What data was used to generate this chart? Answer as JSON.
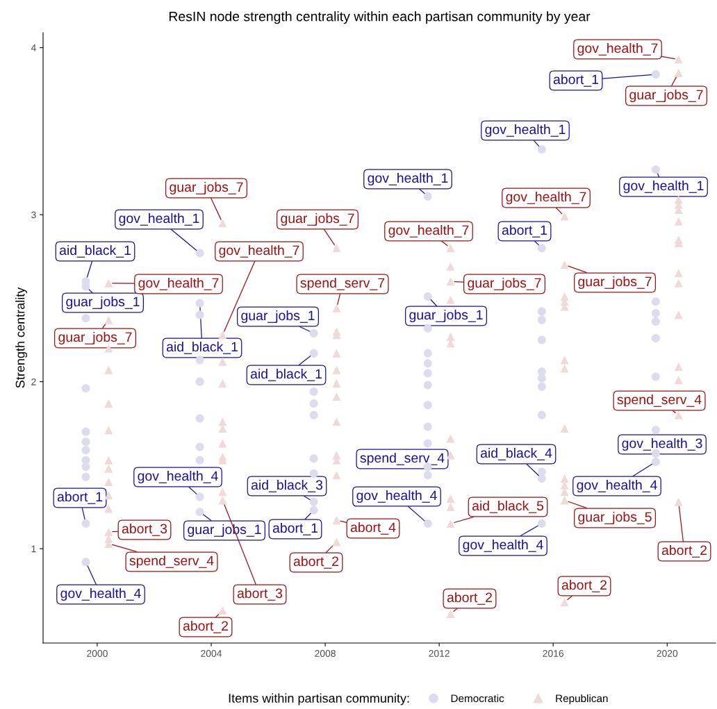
{
  "chart_data": {
    "type": "scatter",
    "title": "ResIN node strength centrality within each partisan community by year",
    "ylabel": "Strength centrality",
    "legend_title": "Items within partisan community:",
    "legend": "bottom",
    "grid": false,
    "xlim": [
      1998.1,
      2021.7
    ],
    "xticks": [
      2000,
      2004,
      2008,
      2012,
      2016,
      2020
    ],
    "ylim": [
      0.435,
      4.09
    ],
    "yticks": [
      1,
      2,
      3,
      4
    ],
    "series": [
      {
        "name": "Democratic",
        "color": "#dddcef",
        "marker": "circle",
        "x": [
          1999.6,
          1999.6,
          1999.6,
          1999.6,
          1999.6,
          1999.6,
          1999.6,
          1999.6,
          1999.6,
          1999.6,
          1999.6,
          1999.6,
          2003.6,
          2003.6,
          2003.6,
          2003.6,
          2003.6,
          2003.6,
          2003.6,
          2003.6,
          2003.6,
          2003.6,
          2007.6,
          2007.6,
          2007.6,
          2007.6,
          2007.6,
          2007.6,
          2007.6,
          2007.6,
          2007.6,
          2011.6,
          2011.6,
          2011.6,
          2011.6,
          2011.6,
          2011.6,
          2011.6,
          2011.6,
          2011.6,
          2011.6,
          2011.6,
          2011.6,
          2011.6,
          2015.6,
          2015.6,
          2015.6,
          2015.6,
          2015.6,
          2015.6,
          2015.6,
          2015.6,
          2015.6,
          2015.6,
          2015.6,
          2015.6,
          2019.6,
          2019.6,
          2019.6,
          2019.6,
          2019.6,
          2019.6,
          2019.6,
          2019.6,
          2019.6,
          2019.6
        ],
        "values": [
          2.6,
          2.57,
          2.38,
          1.96,
          1.7,
          1.64,
          1.59,
          1.53,
          1.49,
          1.43,
          1.15,
          0.92,
          2.77,
          2.47,
          2.4,
          2.13,
          2.0,
          1.78,
          1.61,
          1.53,
          1.31,
          1.22,
          2.29,
          2.17,
          1.94,
          1.87,
          1.8,
          1.54,
          1.45,
          1.28,
          1.23,
          3.11,
          2.51,
          2.32,
          2.17,
          2.11,
          2.05,
          1.98,
          1.86,
          1.73,
          1.63,
          1.49,
          1.44,
          1.15,
          3.39,
          2.8,
          2.42,
          2.37,
          2.25,
          2.06,
          2.02,
          1.97,
          1.8,
          1.46,
          1.42,
          1.15,
          3.84,
          3.27,
          2.48,
          2.41,
          2.36,
          2.26,
          2.03,
          1.71,
          1.57,
          1.52
        ]
      },
      {
        "name": "Republican",
        "color": "#efd9d9",
        "marker": "triangle",
        "x": [
          2000.4,
          2000.4,
          2000.4,
          2000.4,
          2000.4,
          2000.4,
          2000.4,
          2000.4,
          2000.4,
          2000.4,
          2000.4,
          2000.4,
          2000.4,
          2000.4,
          2004.4,
          2004.4,
          2004.4,
          2004.4,
          2004.4,
          2004.4,
          2004.4,
          2004.4,
          2004.4,
          2004.4,
          2004.4,
          2004.4,
          2008.4,
          2008.4,
          2008.4,
          2008.4,
          2008.4,
          2008.4,
          2008.4,
          2008.4,
          2008.4,
          2008.4,
          2008.4,
          2008.4,
          2008.4,
          2008.4,
          2012.4,
          2012.4,
          2012.4,
          2012.4,
          2012.4,
          2012.4,
          2012.4,
          2012.4,
          2012.4,
          2012.4,
          2012.4,
          2012.4,
          2016.4,
          2016.4,
          2016.4,
          2016.4,
          2016.4,
          2016.4,
          2016.4,
          2016.4,
          2016.4,
          2016.4,
          2016.4,
          2016.4,
          2016.4,
          2020.4,
          2020.4,
          2020.4,
          2020.4,
          2020.4,
          2020.4,
          2020.4,
          2020.4,
          2020.4,
          2020.4,
          2020.4,
          2020.4,
          2020.4,
          2020.4,
          2020.4
        ],
        "values": [
          2.59,
          2.37,
          2.2,
          2.07,
          1.87,
          1.71,
          1.53,
          1.48,
          1.4,
          1.32,
          1.24,
          1.1,
          1.06,
          1.03,
          2.95,
          2.28,
          2.12,
          1.99,
          1.76,
          1.72,
          1.63,
          1.55,
          1.53,
          1.34,
          1.29,
          0.63,
          2.8,
          2.44,
          2.3,
          2.28,
          2.17,
          2.07,
          1.99,
          1.91,
          1.76,
          1.56,
          1.53,
          1.44,
          1.17,
          1.04,
          2.8,
          2.69,
          2.6,
          2.49,
          2.27,
          2.23,
          1.66,
          1.56,
          1.3,
          1.25,
          1.15,
          0.61,
          2.99,
          2.7,
          2.51,
          2.48,
          2.45,
          2.13,
          2.08,
          1.72,
          1.42,
          1.38,
          1.34,
          1.29,
          0.68,
          3.93,
          3.85,
          3.09,
          3.06,
          3.03,
          2.96,
          2.85,
          2.83,
          2.65,
          2.59,
          2.4,
          2.09,
          2.01,
          1.8,
          1.28
        ]
      }
    ],
    "annotations": [
      {
        "text": "aid_black_1",
        "x": 1999.6,
        "y": 2.6
      },
      {
        "text": "guar_jobs_1",
        "x": 1999.6,
        "y": 2.57
      },
      {
        "text": "abort_1",
        "x": 1999.6,
        "y": 1.15
      },
      {
        "text": "gov_health_4",
        "x": 1999.6,
        "y": 0.92
      },
      {
        "text": "gov_health_1",
        "x": 2003.6,
        "y": 2.77
      },
      {
        "text": "aid_black_1",
        "x": 2003.6,
        "y": 2.47
      },
      {
        "text": "gov_health_4",
        "x": 2003.6,
        "y": 1.31
      },
      {
        "text": "guar_jobs_1",
        "x": 2003.6,
        "y": 1.22
      },
      {
        "text": "guar_jobs_1",
        "x": 2007.6,
        "y": 2.29
      },
      {
        "text": "aid_black_1",
        "x": 2007.6,
        "y": 2.17
      },
      {
        "text": "aid_black_3",
        "x": 2007.6,
        "y": 1.28
      },
      {
        "text": "abort_1",
        "x": 2007.6,
        "y": 1.23
      },
      {
        "text": "gov_health_1",
        "x": 2011.6,
        "y": 3.11
      },
      {
        "text": "guar_jobs_1",
        "x": 2011.6,
        "y": 2.51
      },
      {
        "text": "spend_serv_4",
        "x": 2011.6,
        "y": 1.49
      },
      {
        "text": "gov_health_4",
        "x": 2011.6,
        "y": 1.15
      },
      {
        "text": "gov_health_1",
        "x": 2015.6,
        "y": 3.39
      },
      {
        "text": "abort_1",
        "x": 2015.6,
        "y": 2.8
      },
      {
        "text": "aid_black_4",
        "x": 2015.6,
        "y": 1.42
      },
      {
        "text": "gov_health_4",
        "x": 2015.6,
        "y": 1.15
      },
      {
        "text": "abort_1",
        "x": 2019.6,
        "y": 3.84
      },
      {
        "text": "gov_health_1",
        "x": 2019.6,
        "y": 3.27
      },
      {
        "text": "gov_health_3",
        "x": 2019.6,
        "y": 1.57
      },
      {
        "text": "gov_health_4",
        "x": 2019.6,
        "y": 1.52
      },
      {
        "text": "gov_health_7",
        "x": 2000.4,
        "y": 2.59
      },
      {
        "text": "guar_jobs_7",
        "x": 2000.4,
        "y": 2.37
      },
      {
        "text": "abort_3",
        "x": 2000.4,
        "y": 1.1
      },
      {
        "text": "spend_serv_4",
        "x": 2000.4,
        "y": 1.03
      },
      {
        "text": "guar_jobs_7",
        "x": 2004.4,
        "y": 2.95
      },
      {
        "text": "gov_health_7",
        "x": 2004.4,
        "y": 2.28
      },
      {
        "text": "abort_3",
        "x": 2004.4,
        "y": 1.29
      },
      {
        "text": "abort_2",
        "x": 2004.4,
        "y": 0.63
      },
      {
        "text": "guar_jobs_7",
        "x": 2008.4,
        "y": 2.8
      },
      {
        "text": "spend_serv_7",
        "x": 2008.4,
        "y": 2.44
      },
      {
        "text": "abort_4",
        "x": 2008.4,
        "y": 1.17
      },
      {
        "text": "abort_2",
        "x": 2008.4,
        "y": 1.04
      },
      {
        "text": "gov_health_7",
        "x": 2012.4,
        "y": 2.8
      },
      {
        "text": "guar_jobs_7",
        "x": 2012.4,
        "y": 2.6
      },
      {
        "text": "aid_black_5",
        "x": 2012.4,
        "y": 1.15
      },
      {
        "text": "abort_2",
        "x": 2012.4,
        "y": 0.61
      },
      {
        "text": "gov_health_7",
        "x": 2016.4,
        "y": 2.99
      },
      {
        "text": "guar_jobs_7",
        "x": 2016.4,
        "y": 2.7
      },
      {
        "text": "guar_jobs_5",
        "x": 2016.4,
        "y": 1.29
      },
      {
        "text": "abort_2",
        "x": 2016.4,
        "y": 0.68
      },
      {
        "text": "gov_health_7",
        "x": 2020.4,
        "y": 3.93
      },
      {
        "text": "guar_jobs_7",
        "x": 2020.4,
        "y": 3.85
      },
      {
        "text": "spend_serv_4",
        "x": 2020.4,
        "y": 1.8
      },
      {
        "text": "abort_2",
        "x": 2020.4,
        "y": 1.28
      }
    ]
  }
}
